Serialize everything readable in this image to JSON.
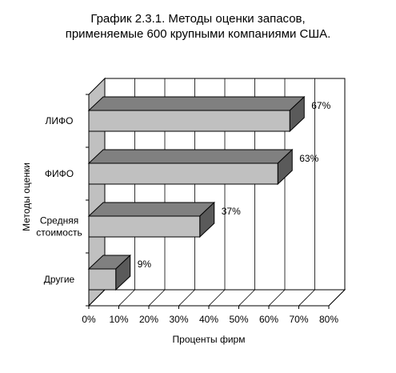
{
  "chart_data": {
    "type": "bar",
    "orientation": "horizontal",
    "style": "3d",
    "title_lines": [
      "График 2.3.1.  Методы оценки запасов,",
      "применяемые 600 крупными компаниями США."
    ],
    "xlabel": "Проценты фирм",
    "ylabel": "Методы оценки",
    "categories": [
      [
        "ЛИФО"
      ],
      [
        "ФИФО"
      ],
      [
        "Средняя",
        "стоимость"
      ],
      [
        "Другие"
      ]
    ],
    "values": [
      67,
      63,
      37,
      9
    ],
    "data_labels": [
      "67%",
      "63%",
      "37%",
      "9%"
    ],
    "xlim": [
      0,
      80
    ],
    "xticks": [
      "0%",
      "10%",
      "20%",
      "30%",
      "40%",
      "50%",
      "60%",
      "70%",
      "80%"
    ],
    "grid": true,
    "legend": "none",
    "colors": {
      "bar_front": "#c0c0c0",
      "bar_top": "#808080",
      "bar_side": "#5a5a5a",
      "back_wall": "#ffffff",
      "side_wall": "#c0c0c0",
      "floor": "#ffffff",
      "gridline": "#000000"
    }
  }
}
